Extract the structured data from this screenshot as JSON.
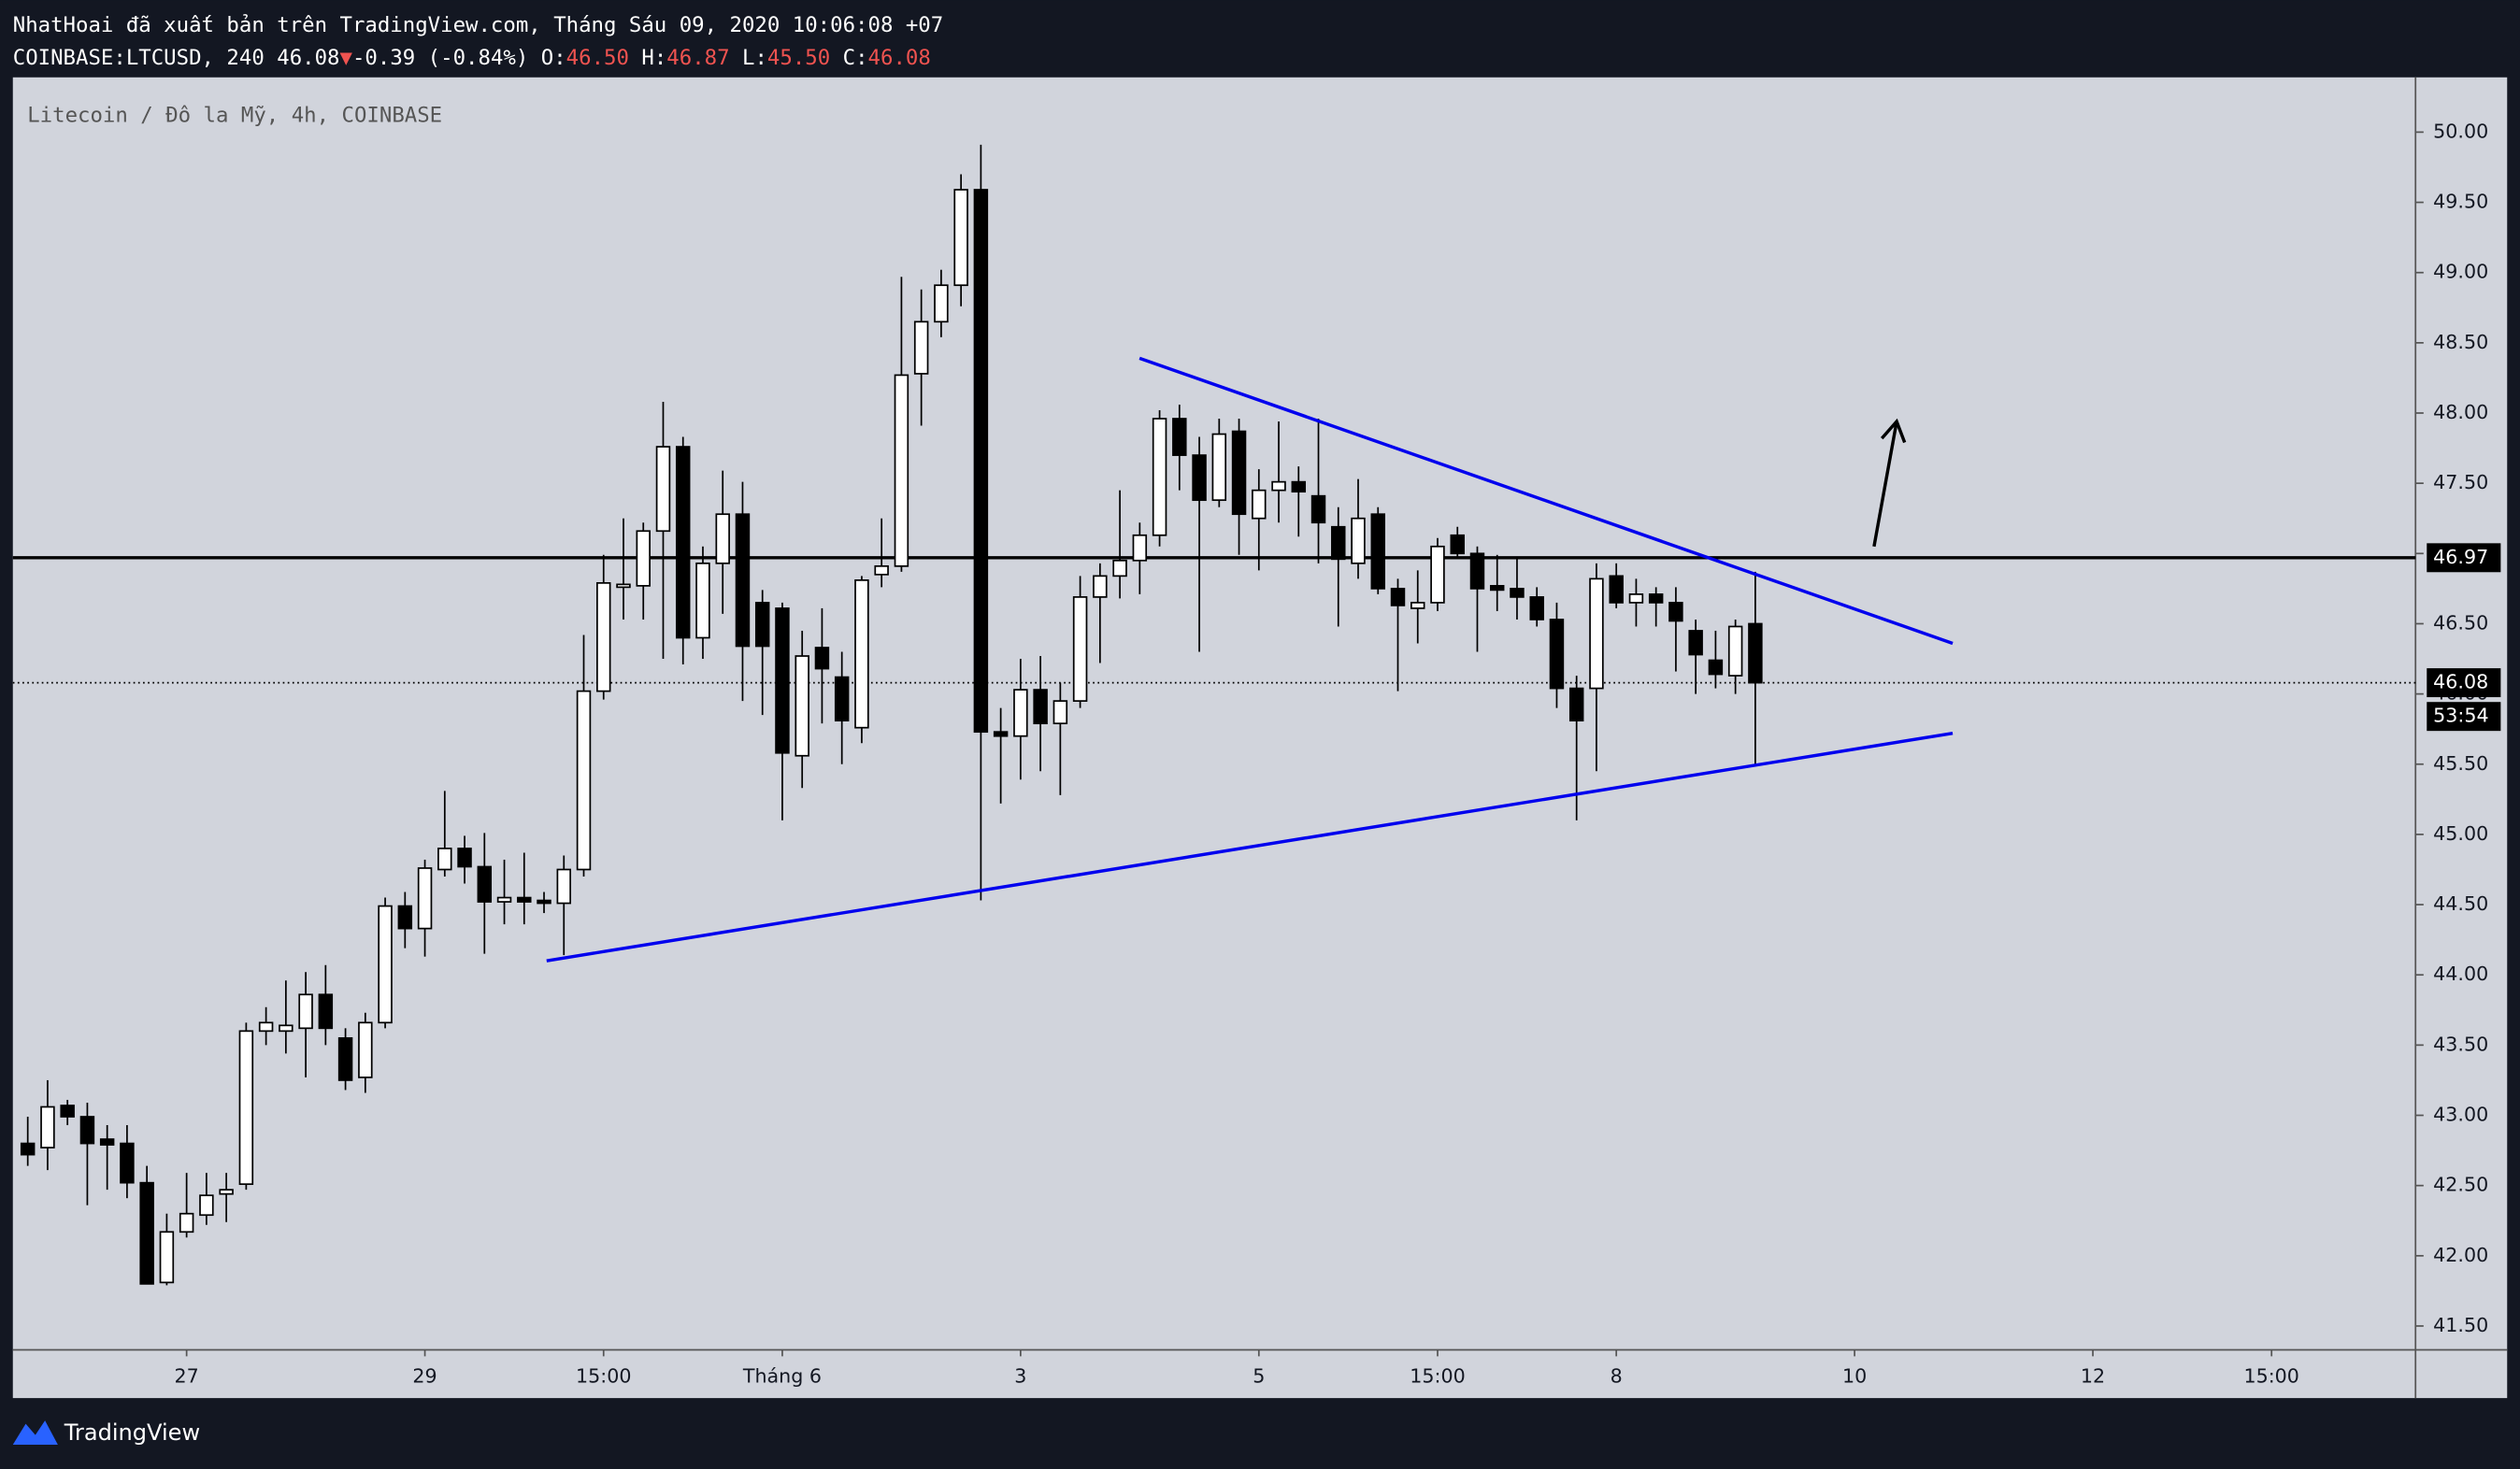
{
  "header": {
    "line1": "NhatHoai đã xuất bản trên TradingView.com, Tháng Sáu 09, 2020 10:06:08 +07",
    "symbol": "COINBASE:LTCUSD, 240",
    "last": "46.08",
    "change": "-0.39 (-0.84%)",
    "ohlc": [
      {
        "key": "O:",
        "text": "46.50"
      },
      {
        "key": "H:",
        "text": "46.87"
      },
      {
        "key": "L:",
        "text": "45.50"
      },
      {
        "key": "C:",
        "text": "46.08"
      }
    ]
  },
  "footer": {
    "brand": "TradingView"
  },
  "chart_data": {
    "type": "candlestick",
    "legend": "Litecoin / Đô la Mỹ, 4h, COINBASE",
    "open": [
      42.8,
      42.77,
      43.07,
      42.99,
      42.83,
      42.8,
      42.52,
      41.81,
      42.17,
      42.29,
      42.44,
      42.51,
      43.6,
      43.6,
      43.62,
      43.86,
      43.55,
      43.27,
      43.66,
      44.49,
      44.33,
      44.75,
      44.9,
      44.77,
      44.52,
      44.55,
      44.53,
      44.51,
      44.75,
      46.02,
      46.76,
      46.77,
      47.16,
      47.76,
      46.4,
      46.93,
      47.28,
      46.65,
      46.61,
      45.56,
      46.33,
      46.12,
      45.76,
      46.85,
      46.91,
      48.28,
      48.65,
      48.91,
      49.59,
      45.73,
      45.7,
      46.03,
      45.79,
      45.95,
      46.69,
      46.84,
      46.95,
      47.13,
      47.96,
      47.7,
      47.38,
      47.87,
      47.25,
      47.45,
      47.51,
      47.41,
      47.19,
      46.93,
      47.28,
      46.75,
      46.61,
      46.65,
      47.13,
      47.0,
      46.77,
      46.75,
      46.69,
      46.53,
      46.04,
      46.04,
      46.84,
      46.65,
      46.71,
      46.65,
      46.45,
      46.24,
      46.13,
      46.5
    ],
    "high": [
      42.99,
      43.25,
      43.11,
      43.09,
      42.93,
      42.93,
      42.64,
      42.3,
      42.59,
      42.59,
      42.59,
      43.66,
      43.77,
      43.96,
      44.02,
      44.07,
      43.62,
      43.73,
      44.55,
      44.59,
      44.82,
      45.31,
      44.99,
      45.01,
      44.82,
      44.87,
      44.59,
      44.85,
      46.42,
      46.99,
      47.25,
      47.22,
      48.08,
      47.83,
      47.05,
      47.59,
      47.51,
      46.74,
      46.65,
      46.45,
      46.61,
      46.3,
      46.84,
      47.25,
      48.97,
      48.88,
      49.02,
      49.7,
      49.91,
      45.9,
      46.25,
      46.27,
      46.08,
      46.84,
      46.93,
      47.45,
      47.22,
      48.02,
      48.06,
      47.83,
      47.96,
      47.96,
      47.6,
      47.94,
      47.62,
      47.96,
      47.33,
      47.53,
      47.33,
      46.82,
      46.88,
      47.11,
      47.19,
      47.05,
      46.99,
      46.96,
      46.76,
      46.65,
      46.13,
      46.93,
      46.93,
      46.82,
      46.76,
      46.76,
      46.53,
      46.45,
      46.53,
      46.87
    ],
    "low": [
      42.64,
      42.61,
      42.93,
      42.36,
      42.47,
      42.41,
      41.8,
      41.79,
      42.13,
      42.22,
      42.24,
      42.47,
      43.5,
      43.44,
      43.27,
      43.5,
      43.18,
      43.16,
      43.62,
      44.19,
      44.13,
      44.7,
      44.65,
      44.15,
      44.36,
      44.36,
      44.44,
      44.14,
      44.7,
      45.96,
      46.53,
      46.53,
      46.25,
      46.21,
      46.25,
      46.57,
      45.95,
      45.85,
      45.1,
      45.33,
      45.79,
      45.5,
      45.65,
      46.76,
      46.87,
      47.91,
      48.54,
      48.76,
      44.53,
      45.22,
      45.39,
      45.45,
      45.28,
      45.9,
      46.22,
      46.68,
      46.71,
      47.05,
      47.45,
      46.3,
      47.33,
      46.99,
      46.88,
      47.22,
      47.12,
      46.93,
      46.48,
      46.82,
      46.71,
      46.02,
      46.36,
      46.59,
      46.96,
      46.3,
      46.59,
      46.53,
      46.48,
      45.9,
      45.1,
      45.45,
      46.61,
      46.48,
      46.48,
      46.16,
      46.0,
      46.04,
      46.0,
      45.5
    ],
    "close": [
      42.72,
      43.06,
      42.99,
      42.8,
      42.79,
      42.52,
      41.8,
      42.17,
      42.3,
      42.43,
      42.47,
      43.6,
      43.66,
      43.64,
      43.86,
      43.62,
      43.25,
      43.66,
      44.49,
      44.33,
      44.76,
      44.9,
      44.77,
      44.52,
      44.55,
      44.52,
      44.51,
      44.75,
      46.02,
      46.79,
      46.78,
      47.16,
      47.76,
      46.4,
      46.93,
      47.28,
      46.34,
      46.34,
      45.58,
      46.27,
      46.18,
      45.81,
      46.81,
      46.91,
      48.27,
      48.65,
      48.91,
      49.59,
      45.73,
      45.7,
      46.03,
      45.79,
      45.95,
      46.69,
      46.84,
      46.95,
      47.13,
      47.96,
      47.7,
      47.38,
      47.85,
      47.28,
      47.45,
      47.51,
      47.44,
      47.22,
      46.96,
      47.25,
      46.75,
      46.63,
      46.65,
      47.05,
      47.0,
      46.75,
      46.74,
      46.69,
      46.53,
      46.04,
      45.81,
      46.82,
      46.65,
      46.71,
      46.65,
      46.52,
      46.28,
      46.14,
      46.48,
      46.08
    ],
    "xlim": [
      -0.75,
      120.25
    ],
    "xticks": [
      {
        "value": 8,
        "label": "27"
      },
      {
        "value": 20,
        "label": "29"
      },
      {
        "value": 29,
        "label": "15:00"
      },
      {
        "value": 38,
        "label": "Tháng 6"
      },
      {
        "value": 50,
        "label": "3"
      },
      {
        "value": 62,
        "label": "5"
      },
      {
        "value": 71,
        "label": "15:00"
      },
      {
        "value": 80,
        "label": "8"
      },
      {
        "value": 92,
        "label": "10"
      },
      {
        "value": 104,
        "label": "12"
      },
      {
        "value": 113,
        "label": "15:00"
      }
    ],
    "ylim": [
      41.33,
      50.39
    ],
    "yticks": [
      {
        "value": 41.5,
        "label": "41.50"
      },
      {
        "value": 42,
        "label": "42.00"
      },
      {
        "value": 42.5,
        "label": "42.50"
      },
      {
        "value": 43,
        "label": "43.00"
      },
      {
        "value": 43.5,
        "label": "43.50"
      },
      {
        "value": 44,
        "label": "44.00"
      },
      {
        "value": 44.5,
        "label": "44.50"
      },
      {
        "value": 45,
        "label": "45.00"
      },
      {
        "value": 45.5,
        "label": "45.50"
      },
      {
        "value": 46,
        "label": "46.00"
      },
      {
        "value": 46.5,
        "label": "46.50"
      },
      {
        "value": 47,
        "label": "47.00"
      },
      {
        "value": 47.5,
        "label": "47.50"
      },
      {
        "value": 48,
        "label": "48.00"
      },
      {
        "value": 48.5,
        "label": "48.50"
      },
      {
        "value": 49,
        "label": "49.00"
      },
      {
        "value": 49.5,
        "label": "49.50"
      },
      {
        "value": 50,
        "label": "50.00"
      }
    ],
    "level": {
      "value": 46.97,
      "label": "46.97"
    },
    "last_price": {
      "value": 46.08,
      "label": "46.08",
      "countdown": "53:54"
    },
    "trendlines": [
      {
        "color": "#0000ee",
        "x": [
          26.13,
          96.94
        ],
        "y": [
          44.1,
          45.72
        ]
      },
      {
        "color": "#0000ee",
        "x": [
          55.99,
          96.94
        ],
        "y": [
          48.39,
          46.36
        ]
      }
    ],
    "arrow": {
      "color": "#000000",
      "x": [
        92.98,
        94.12
      ],
      "y": [
        47.05,
        47.94
      ]
    }
  }
}
